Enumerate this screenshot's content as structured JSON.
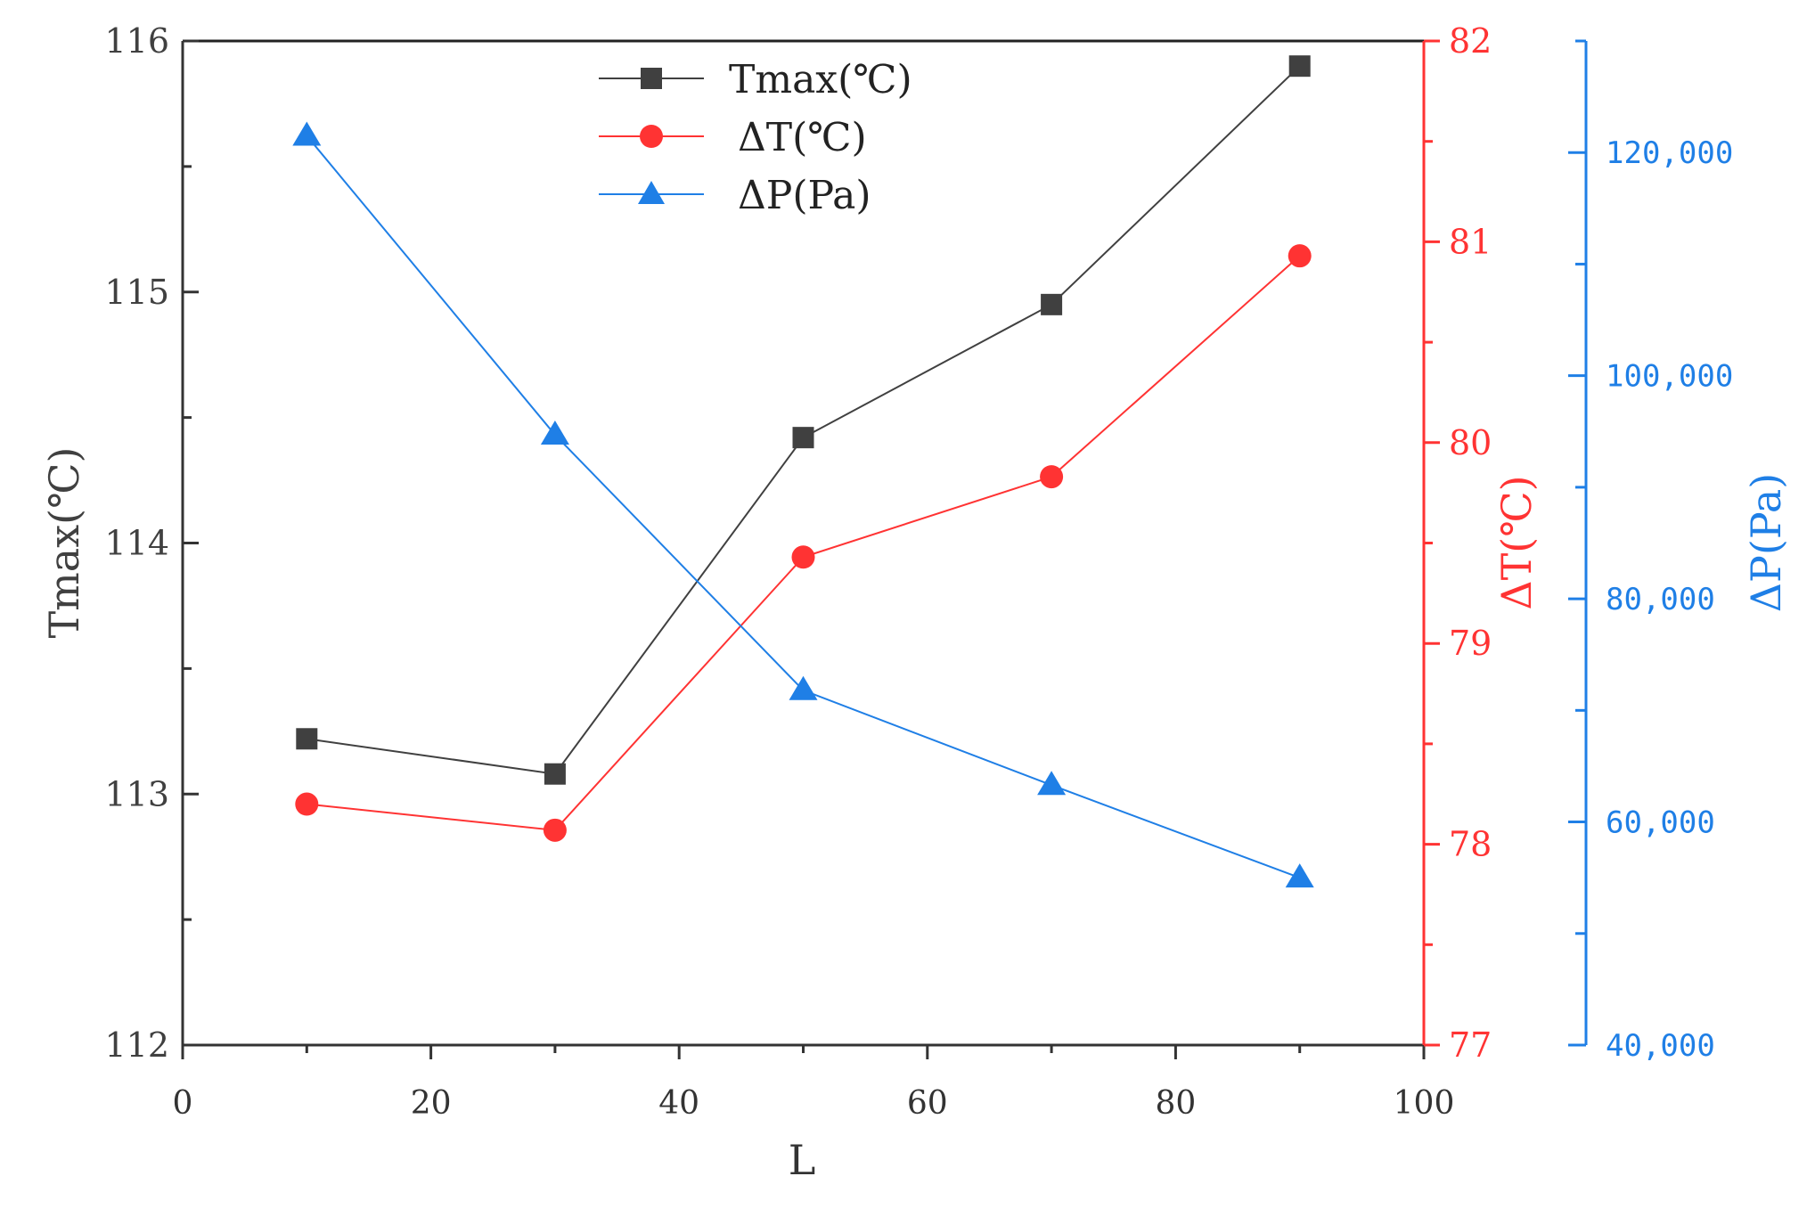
{
  "chart_data": {
    "type": "line",
    "x": [
      10,
      30,
      50,
      70,
      90
    ],
    "xlabel": "L",
    "xlim": [
      0,
      100
    ],
    "xticks": [
      "0",
      "20",
      "40",
      "60",
      "80",
      "100"
    ],
    "axes": {
      "left": {
        "label": "Tmax(℃)",
        "lim": [
          112,
          116
        ],
        "ticks": [
          "112",
          "113",
          "114",
          "115",
          "116"
        ],
        "color": "#404040"
      },
      "right1": {
        "label": "ΔT(℃)",
        "lim": [
          77,
          82
        ],
        "ticks": [
          "77",
          "78",
          "79",
          "80",
          "81",
          "82"
        ],
        "color": "#ff3333"
      },
      "right2": {
        "label": "ΔP(Pa)",
        "lim": [
          40000,
          130000
        ],
        "ticks": [
          "40,000",
          "60,000",
          "80,000",
          "100,000",
          "120,000"
        ],
        "color": "#1f7fe6"
      }
    },
    "series": [
      {
        "name": "Tmax(℃)",
        "axis": "left",
        "marker": "square",
        "color": "#404040",
        "values": [
          113.22,
          113.08,
          114.42,
          114.95,
          115.9
        ]
      },
      {
        "name": "ΔT(℃)",
        "axis": "right1",
        "marker": "circle",
        "color": "#ff3333",
        "values": [
          78.2,
          78.07,
          79.43,
          79.83,
          80.93
        ]
      },
      {
        "name": "ΔP(Pa)",
        "axis": "right2",
        "marker": "triangle",
        "color": "#1f7fe6",
        "values": [
          121500,
          94700,
          71800,
          63300,
          55000
        ]
      }
    ],
    "legend": {
      "position": "top-center",
      "entries": [
        "Tmax(℃)",
        "ΔT(℃)",
        "ΔP(Pa)"
      ]
    }
  }
}
